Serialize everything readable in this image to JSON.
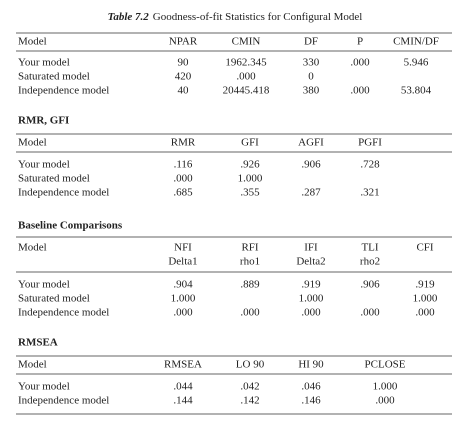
{
  "caption": {
    "label": "Table 7.2",
    "text": "Goodness-of-fit Statistics for Configural Model"
  },
  "sections": [
    {
      "header": [
        "Model",
        "NPAR",
        "CMIN",
        "DF",
        "P",
        "CMIN/DF"
      ],
      "rows": [
        [
          "Your model",
          "90",
          "1962.345",
          "330",
          ".000",
          "5.946"
        ],
        [
          "Saturated model",
          "420",
          ".000",
          "0",
          null,
          null
        ],
        [
          "Independence model",
          "40",
          "20445.418",
          "380",
          ".000",
          "53.804"
        ]
      ]
    },
    {
      "title": "RMR, GFI",
      "header": [
        "Model",
        "RMR",
        "GFI",
        "AGFI",
        "PGFI"
      ],
      "rows": [
        [
          "Your model",
          ".116",
          ".926",
          ".906",
          ".728"
        ],
        [
          "Saturated model",
          ".000",
          "1.000",
          null,
          null
        ],
        [
          "Independence model",
          ".685",
          ".355",
          ".287",
          ".321"
        ]
      ]
    },
    {
      "title": "Baseline Comparisons",
      "header": [
        "Model",
        [
          "NFI",
          "Delta1"
        ],
        [
          "RFI",
          "rho1"
        ],
        [
          "IFI",
          "Delta2"
        ],
        [
          "TLI",
          "rho2"
        ],
        "CFI"
      ],
      "rows": [
        [
          "Your model",
          ".904",
          ".889",
          ".919",
          ".906",
          ".919"
        ],
        [
          "Saturated model",
          "1.000",
          null,
          "1.000",
          null,
          "1.000"
        ],
        [
          "Independence model",
          ".000",
          ".000",
          ".000",
          ".000",
          ".000"
        ]
      ]
    },
    {
      "title": "RMSEA",
      "header": [
        "Model",
        "RMSEA",
        "LO 90",
        "HI 90",
        "PCLOSE"
      ],
      "rows": [
        [
          "Your model",
          ".044",
          ".042",
          ".046",
          "1.000"
        ],
        [
          "Independence model",
          ".144",
          ".142",
          ".146",
          ".000"
        ]
      ]
    }
  ]
}
